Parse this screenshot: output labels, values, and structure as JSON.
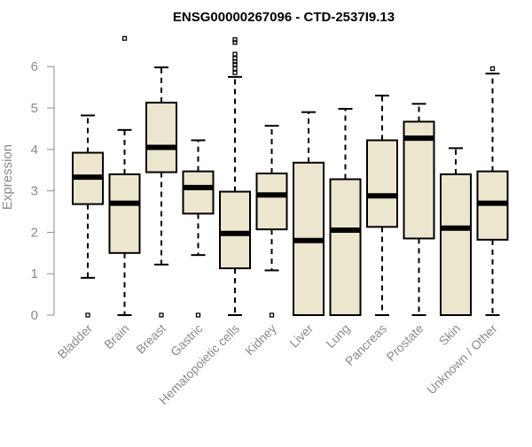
{
  "chart_data": {
    "type": "boxplot",
    "title": "ENSG00000267096 - CTD-2537I9.13",
    "xlabel": "",
    "ylabel": "Expression",
    "ylim": [
      0,
      6.7
    ],
    "yticks": [
      0,
      1,
      2,
      3,
      4,
      5,
      6
    ],
    "grid": false,
    "box_fill": "#ede6cf",
    "categories": [
      "Bladder",
      "Brain",
      "Breast",
      "Gastric",
      "Hematopoietic cells",
      "Kidney",
      "Liver",
      "Lung",
      "Pancreas",
      "Prostate",
      "Skin",
      "Unknown / Other"
    ],
    "boxes": [
      {
        "name": "Bladder",
        "whisker_low": 0.9,
        "q1": 2.68,
        "median": 3.33,
        "q3": 3.92,
        "whisker_high": 4.82,
        "outliers": [
          0
        ]
      },
      {
        "name": "Brain",
        "whisker_low": 0,
        "q1": 1.5,
        "median": 2.7,
        "q3": 3.4,
        "whisker_high": 4.47,
        "outliers": [
          6.68
        ]
      },
      {
        "name": "Breast",
        "whisker_low": 1.22,
        "q1": 3.45,
        "median": 4.05,
        "q3": 5.13,
        "whisker_high": 5.98,
        "outliers": [
          0
        ]
      },
      {
        "name": "Gastric",
        "whisker_low": 1.45,
        "q1": 2.45,
        "median": 3.08,
        "q3": 3.47,
        "whisker_high": 4.22,
        "outliers": [
          0
        ]
      },
      {
        "name": "Hematopoietic cells",
        "whisker_low": 0,
        "q1": 1.13,
        "median": 1.97,
        "q3": 2.98,
        "whisker_high": 5.75,
        "outliers": [
          5.85,
          5.95,
          6.05,
          6.12,
          6.2,
          6.3,
          6.58,
          6.65
        ]
      },
      {
        "name": "Kidney",
        "whisker_low": 1.08,
        "q1": 2.07,
        "median": 2.9,
        "q3": 3.42,
        "whisker_high": 4.57,
        "outliers": [
          0
        ]
      },
      {
        "name": "Liver",
        "whisker_low": 0,
        "q1": 0,
        "median": 1.8,
        "q3": 3.68,
        "whisker_high": 4.9,
        "outliers": []
      },
      {
        "name": "Lung",
        "whisker_low": 0,
        "q1": 0,
        "median": 2.05,
        "q3": 3.28,
        "whisker_high": 4.98,
        "outliers": []
      },
      {
        "name": "Pancreas",
        "whisker_low": 0,
        "q1": 2.13,
        "median": 2.88,
        "q3": 4.22,
        "whisker_high": 5.3,
        "outliers": []
      },
      {
        "name": "Prostate",
        "whisker_low": 0,
        "q1": 1.85,
        "median": 4.27,
        "q3": 4.67,
        "whisker_high": 5.1,
        "outliers": []
      },
      {
        "name": "Skin",
        "whisker_low": 0,
        "q1": 0,
        "median": 2.1,
        "q3": 3.4,
        "whisker_high": 4.03,
        "outliers": []
      },
      {
        "name": "Unknown / Other",
        "whisker_low": 0,
        "q1": 1.82,
        "median": 2.7,
        "q3": 3.47,
        "whisker_high": 5.83,
        "outliers": [
          5.95
        ]
      }
    ]
  }
}
